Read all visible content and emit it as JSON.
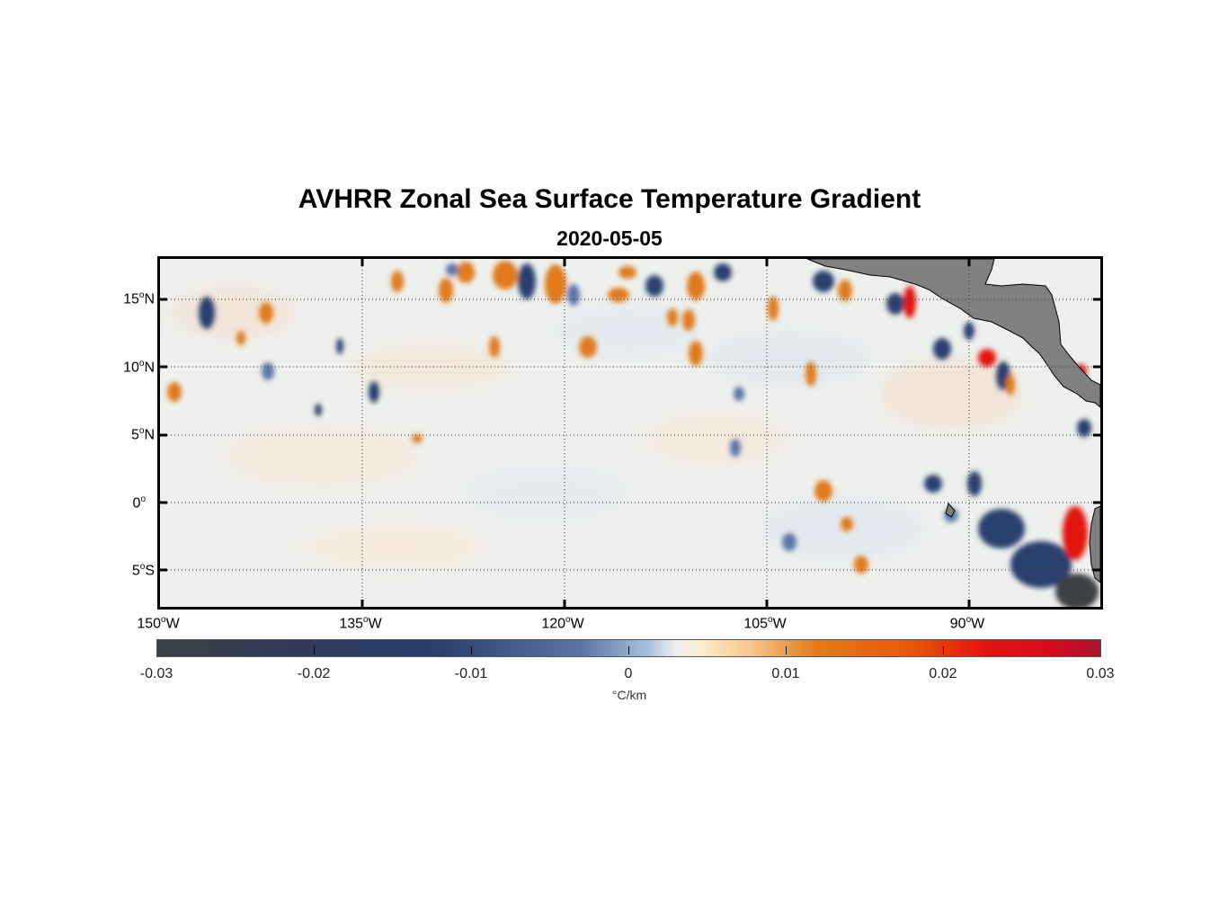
{
  "title": "AVHRR Zonal Sea Surface Temperature Gradient",
  "subtitle": "2020-05-05",
  "y_ticks": [
    {
      "deg": "15",
      "hem": "N"
    },
    {
      "deg": "10",
      "hem": "N"
    },
    {
      "deg": "5",
      "hem": "N"
    },
    {
      "deg": "0",
      "hem": ""
    },
    {
      "deg": "5",
      "hem": "S"
    }
  ],
  "x_ticks": [
    {
      "deg": "150",
      "hem": "W"
    },
    {
      "deg": "135",
      "hem": "W"
    },
    {
      "deg": "120",
      "hem": "W"
    },
    {
      "deg": "105",
      "hem": "W"
    },
    {
      "deg": "90",
      "hem": "W"
    }
  ],
  "colorbar": {
    "ticks": [
      "-0.03",
      "-0.02",
      "-0.01",
      "0",
      "0.01",
      "0.02",
      "0.03"
    ],
    "unit": "°C/km",
    "range": [
      -0.03,
      0.03
    ]
  },
  "colors": {
    "land": "#808080",
    "negative_strong": "#2a3f6e",
    "positive_strong": "#e07a1a",
    "extreme_positive": "#e3120f"
  }
}
